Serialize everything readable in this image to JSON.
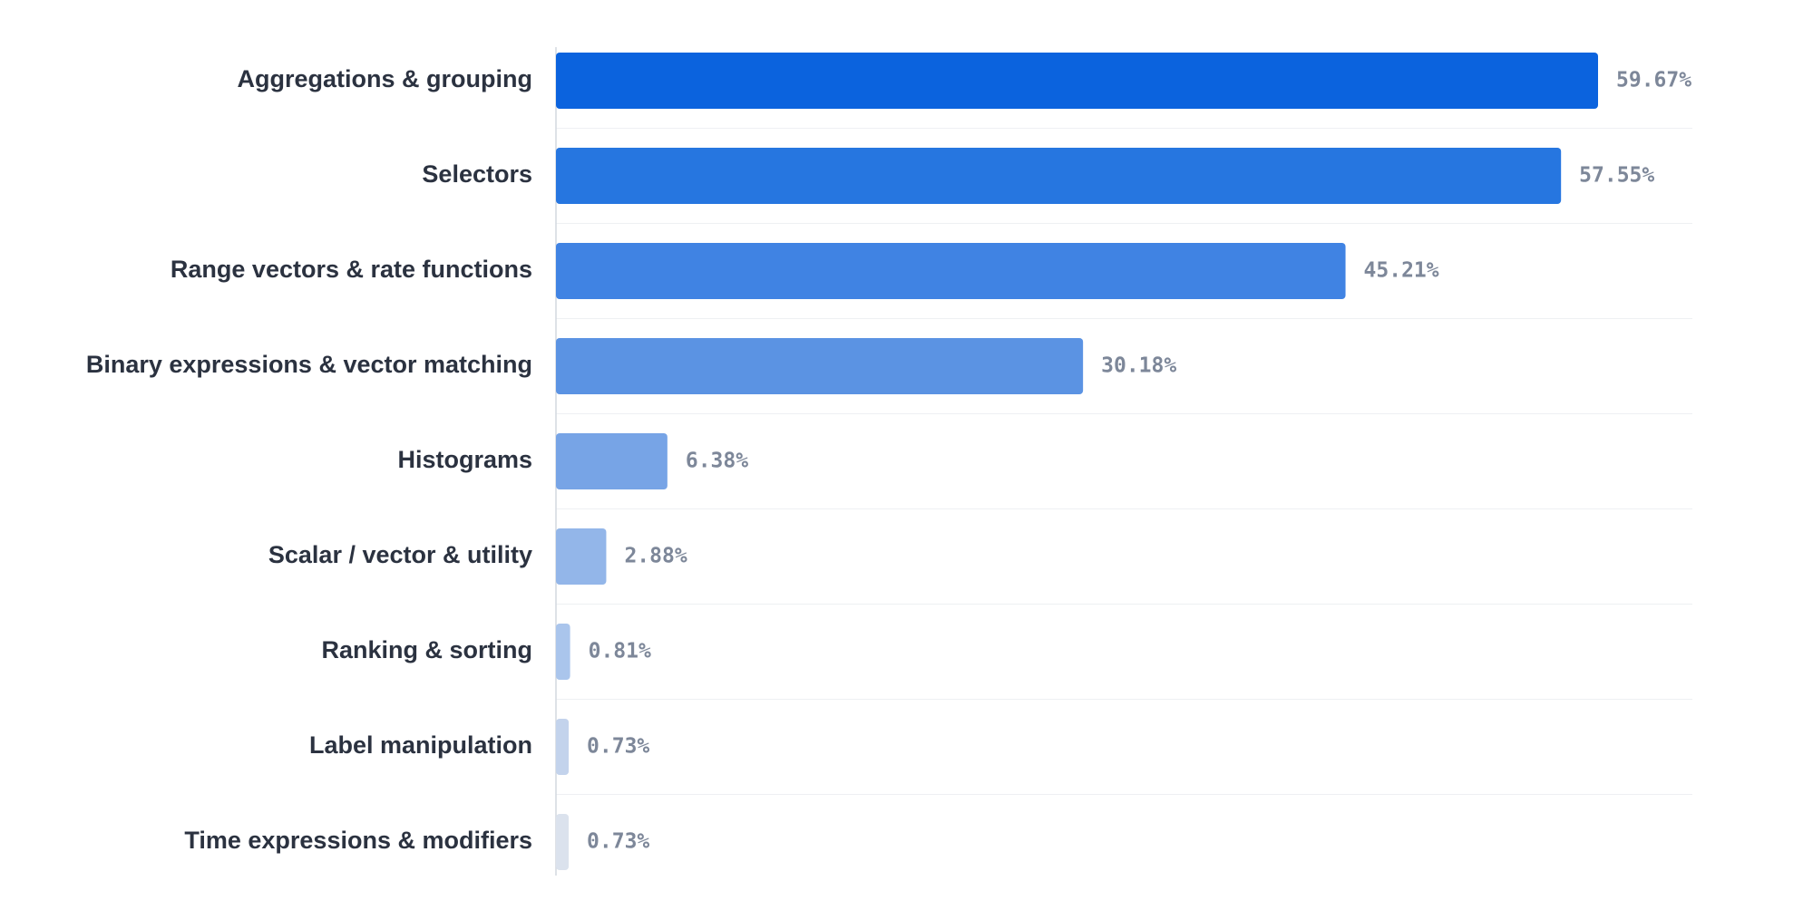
{
  "chart_data": {
    "type": "bar",
    "orientation": "horizontal",
    "title": "",
    "xlabel": "",
    "ylabel": "",
    "categories": [
      "Aggregations & grouping",
      "Selectors",
      "Range vectors & rate functions",
      "Binary expressions & vector matching",
      "Histograms",
      "Scalar / vector & utility",
      "Ranking & sorting",
      "Label manipulation",
      "Time expressions & modifiers"
    ],
    "values": [
      59.67,
      57.55,
      45.21,
      30.18,
      6.38,
      2.88,
      0.81,
      0.73,
      0.73
    ],
    "value_labels": [
      "59.67%",
      "57.55%",
      "45.21%",
      "30.18%",
      "6.38%",
      "2.88%",
      "0.81%",
      "0.73%",
      "0.73%"
    ],
    "unit": "%",
    "xlim": [
      0,
      65
    ],
    "grid": true,
    "legend": "none",
    "colors": [
      "#0b63de",
      "#2676e0",
      "#4083e3",
      "#5b93e3",
      "#77a4e6",
      "#93b6e9",
      "#aac5ec",
      "#c3d3ec",
      "#dbe2ed"
    ]
  }
}
